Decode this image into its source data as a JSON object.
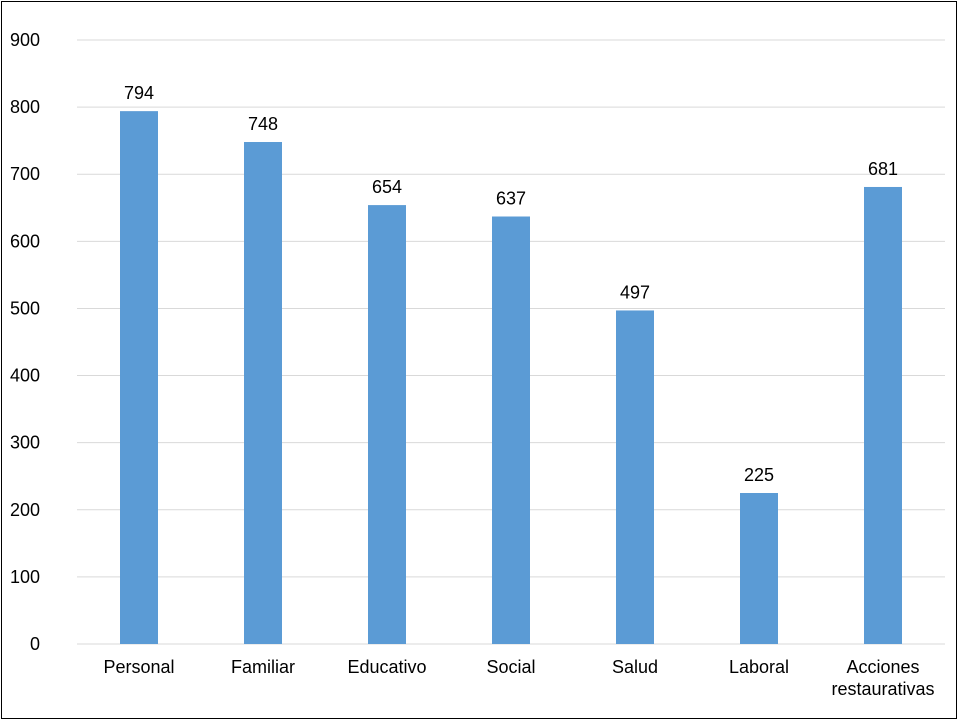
{
  "chart_data": {
    "type": "bar",
    "categories": [
      "Personal",
      "Familiar",
      "Educativo",
      "Social",
      "Salud",
      "Laboral",
      "Acciones restaurativas"
    ],
    "category_lines": [
      [
        "Personal"
      ],
      [
        "Familiar"
      ],
      [
        "Educativo"
      ],
      [
        "Social"
      ],
      [
        "Salud"
      ],
      [
        "Laboral"
      ],
      [
        "Acciones",
        "restaurativas"
      ]
    ],
    "values": [
      794,
      748,
      654,
      637,
      497,
      225,
      681
    ],
    "data_labels": [
      "794",
      "748",
      "654",
      "637",
      "497",
      "225",
      "681"
    ],
    "ylim": [
      0,
      900
    ],
    "yticks": [
      0,
      100,
      200,
      300,
      400,
      500,
      600,
      700,
      800,
      900
    ],
    "grid": true,
    "legend": "none",
    "bar_color": "#5b9bd5",
    "grid_color": "#d9d9d9"
  }
}
